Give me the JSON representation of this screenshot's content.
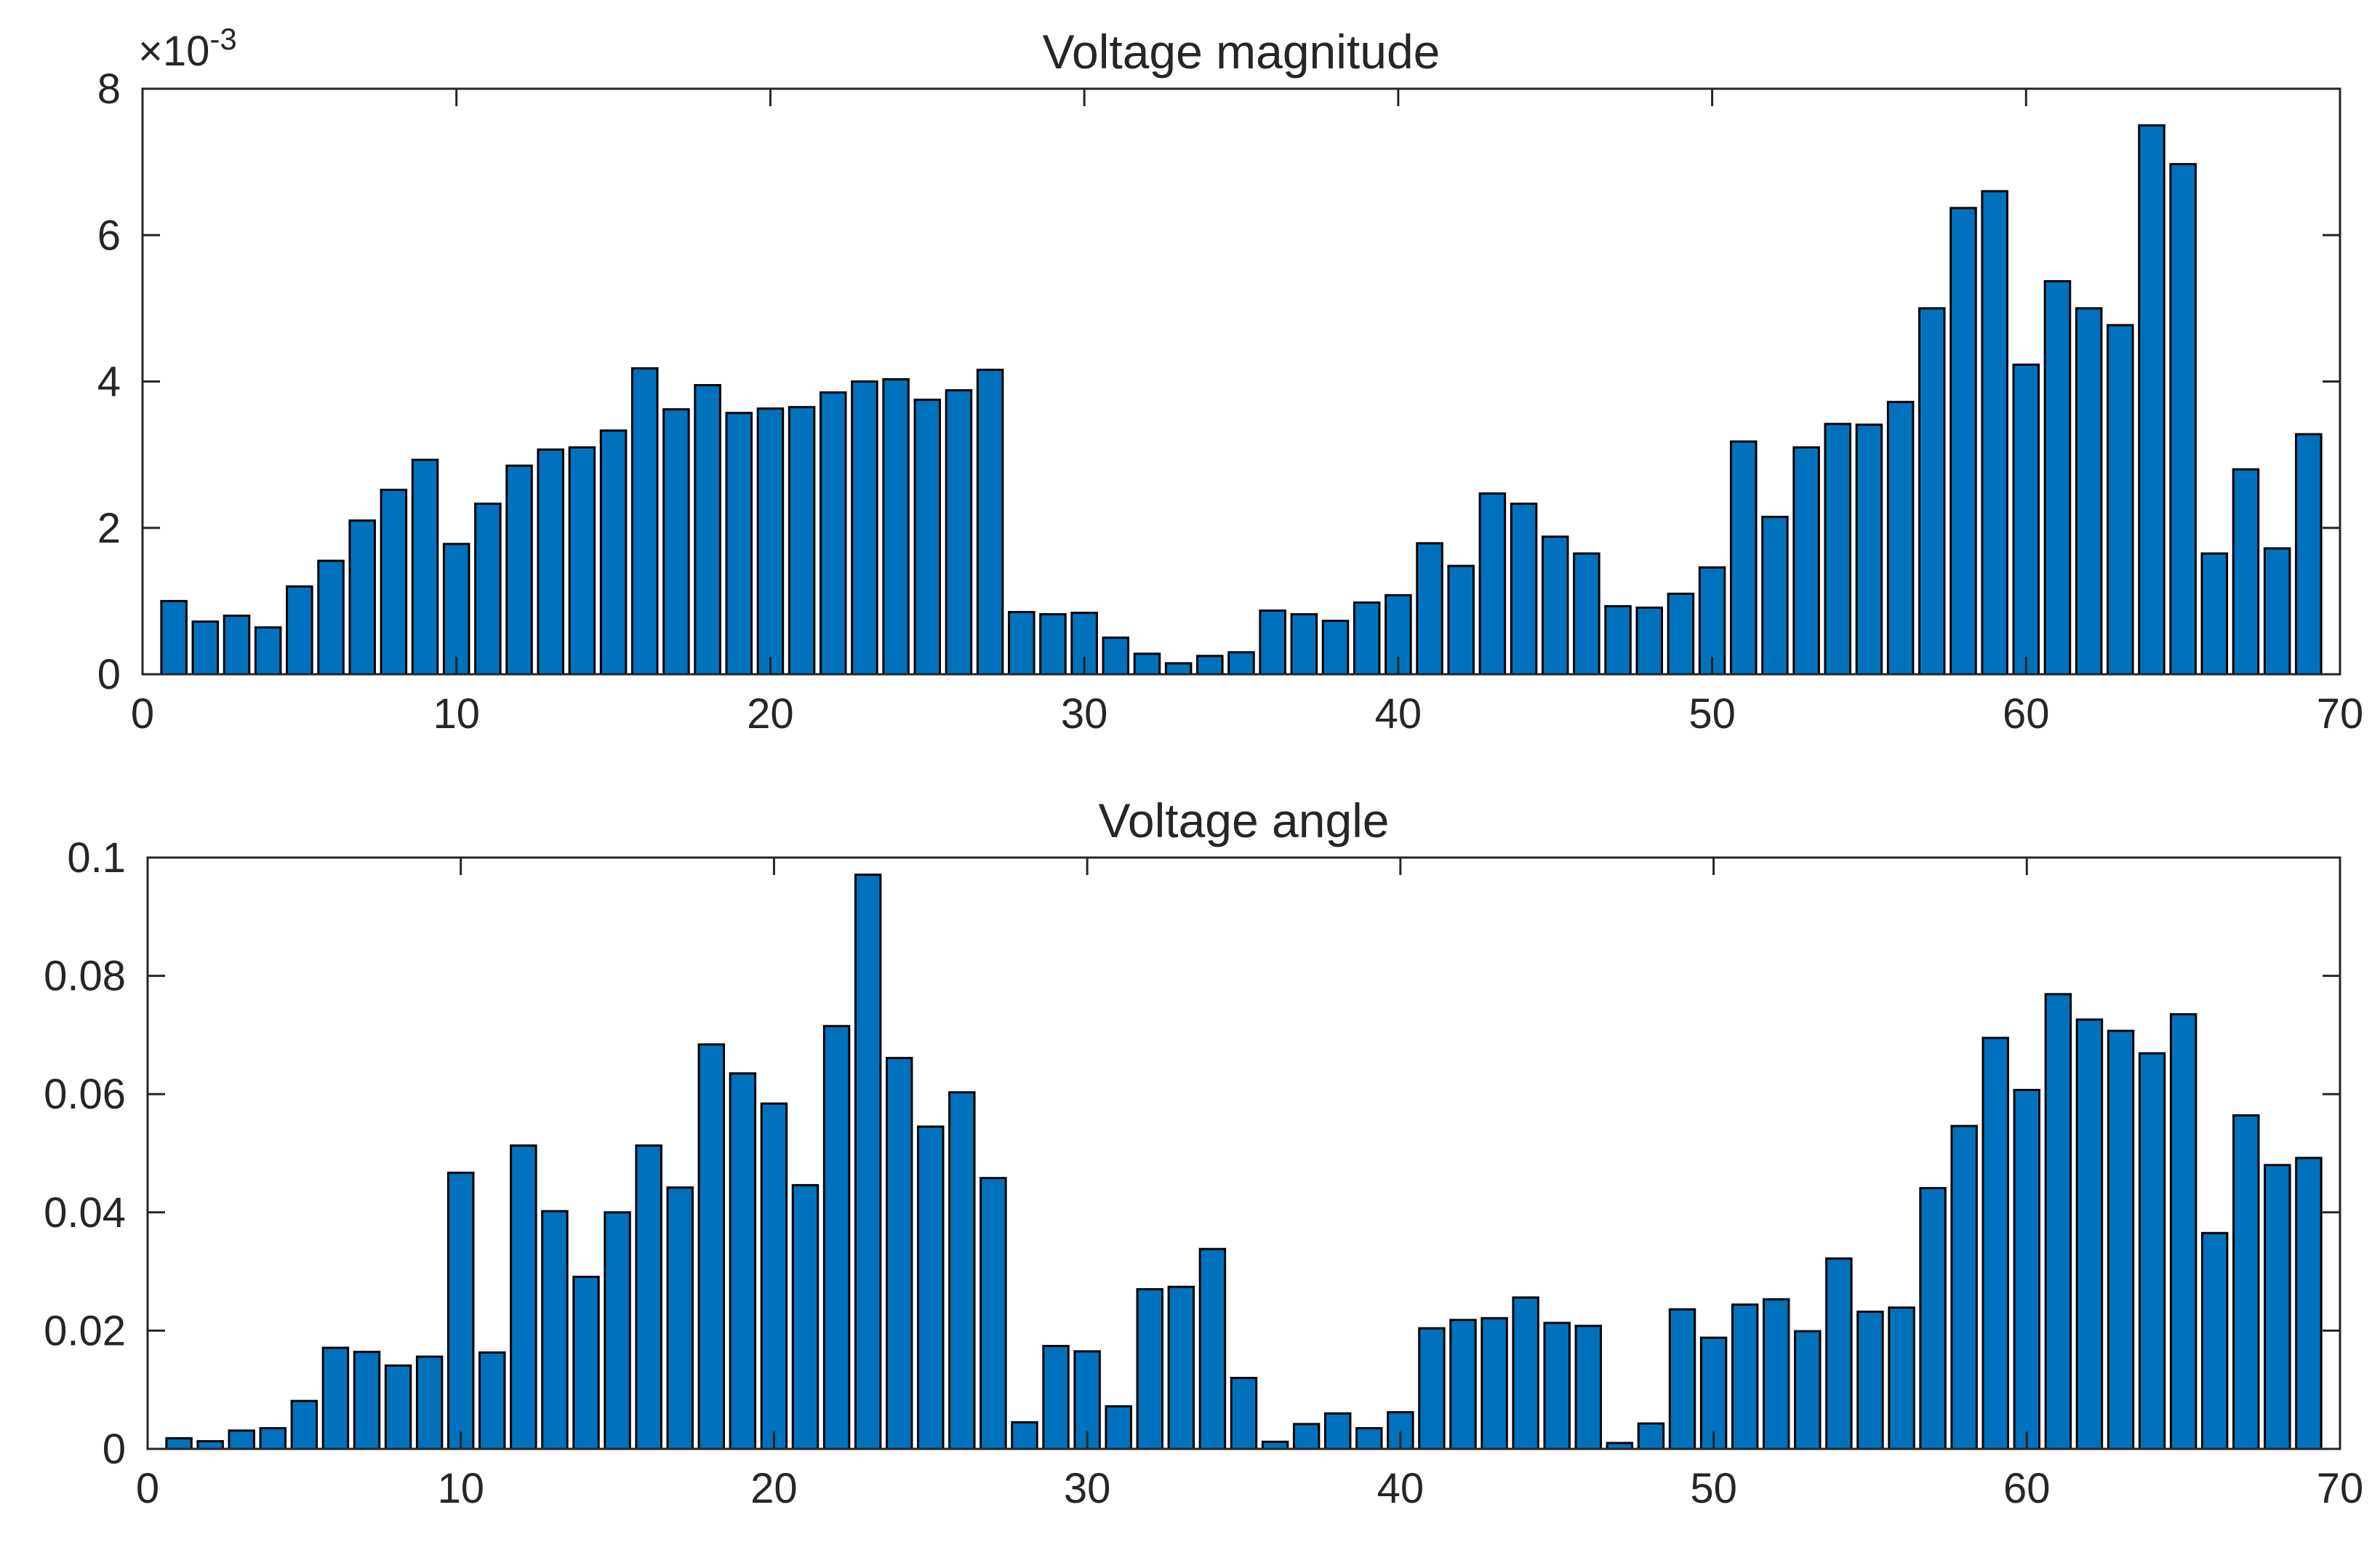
{
  "chart_data": [
    {
      "type": "bar",
      "title": "Voltage magnitude",
      "xlabel": "",
      "ylabel": "",
      "y_exponent_label": "×10",
      "y_exponent_power": "-3",
      "xlim": [
        0,
        70
      ],
      "ylim": [
        0,
        8
      ],
      "xticks": [
        0,
        10,
        20,
        30,
        40,
        50,
        60,
        70
      ],
      "xtick_labels": [
        "0",
        "10",
        "20",
        "30",
        "40",
        "50",
        "60",
        "70"
      ],
      "yticks": [
        0,
        2,
        4,
        6,
        8
      ],
      "ytick_labels": [
        "0",
        "2",
        "4",
        "6",
        "8"
      ],
      "grid": false,
      "bar_color": "#0072bd",
      "x": [
        1,
        2,
        3,
        4,
        5,
        6,
        7,
        8,
        9,
        10,
        11,
        12,
        13,
        14,
        15,
        16,
        17,
        18,
        19,
        20,
        21,
        22,
        23,
        24,
        25,
        26,
        27,
        28,
        29,
        30,
        31,
        32,
        33,
        34,
        35,
        36,
        37,
        38,
        39,
        40,
        41,
        42,
        43,
        44,
        45,
        46,
        47,
        48,
        49,
        50,
        51,
        52,
        53,
        54,
        55,
        56,
        57,
        58,
        59,
        60,
        61,
        62,
        63,
        64,
        65,
        66,
        67,
        68,
        69
      ],
      "values": [
        1.0,
        0.72,
        0.8,
        0.64,
        1.2,
        1.55,
        2.1,
        2.52,
        2.93,
        1.78,
        2.33,
        2.85,
        3.07,
        3.1,
        3.33,
        4.18,
        3.62,
        3.95,
        3.57,
        3.63,
        3.65,
        3.85,
        4.0,
        4.03,
        3.75,
        3.88,
        4.16,
        0.85,
        0.82,
        0.84,
        0.5,
        0.28,
        0.15,
        0.25,
        0.3,
        0.87,
        0.82,
        0.73,
        0.98,
        1.08,
        1.79,
        1.48,
        2.47,
        2.33,
        1.88,
        1.65,
        0.93,
        0.91,
        1.1,
        1.46,
        3.18,
        2.15,
        3.1,
        3.42,
        3.41,
        3.72,
        5.0,
        6.37,
        6.6,
        4.23,
        5.37,
        5.0,
        4.77,
        7.5,
        6.97,
        1.65,
        2.8,
        1.72,
        3.28
      ]
    },
    {
      "type": "bar",
      "title": "Voltage angle",
      "xlabel": "",
      "ylabel": "",
      "xlim": [
        0,
        70
      ],
      "ylim": [
        0,
        0.1
      ],
      "xticks": [
        0,
        10,
        20,
        30,
        40,
        50,
        60,
        70
      ],
      "xtick_labels": [
        "0",
        "10",
        "20",
        "30",
        "40",
        "50",
        "60",
        "70"
      ],
      "yticks": [
        0,
        0.02,
        0.04,
        0.06,
        0.08,
        0.1
      ],
      "ytick_labels": [
        "0",
        "0.02",
        "0.04",
        "0.06",
        "0.08",
        "0.1"
      ],
      "grid": false,
      "bar_color": "#0072bd",
      "x": [
        1,
        2,
        3,
        4,
        5,
        6,
        7,
        8,
        9,
        10,
        11,
        12,
        13,
        14,
        15,
        16,
        17,
        18,
        19,
        20,
        21,
        22,
        23,
        24,
        25,
        26,
        27,
        28,
        29,
        30,
        31,
        32,
        33,
        34,
        35,
        36,
        37,
        38,
        39,
        40,
        41,
        42,
        43,
        44,
        45,
        46,
        47,
        48,
        49,
        50,
        51,
        52,
        53,
        54,
        55,
        56,
        57,
        58,
        59,
        60,
        61,
        62,
        63,
        64,
        65,
        66,
        67,
        68,
        69
      ],
      "values": [
        0.0018,
        0.0013,
        0.0031,
        0.0035,
        0.0081,
        0.0171,
        0.0164,
        0.0141,
        0.0156,
        0.0467,
        0.0163,
        0.0513,
        0.0402,
        0.0291,
        0.04,
        0.0513,
        0.0442,
        0.0684,
        0.0635,
        0.0584,
        0.0446,
        0.0715,
        0.0971,
        0.0661,
        0.0545,
        0.0603,
        0.0458,
        0.0045,
        0.0174,
        0.0165,
        0.0072,
        0.027,
        0.0274,
        0.0338,
        0.012,
        0.0012,
        0.0042,
        0.006,
        0.0035,
        0.0062,
        0.0204,
        0.0218,
        0.0221,
        0.0256,
        0.0213,
        0.0208,
        0.001,
        0.0043,
        0.0236,
        0.0188,
        0.0244,
        0.0253,
        0.0199,
        0.0322,
        0.0232,
        0.0239,
        0.0441,
        0.0546,
        0.0695,
        0.0607,
        0.0769,
        0.0726,
        0.0707,
        0.0669,
        0.0735,
        0.0365,
        0.0564,
        0.048,
        0.0492
      ]
    }
  ]
}
